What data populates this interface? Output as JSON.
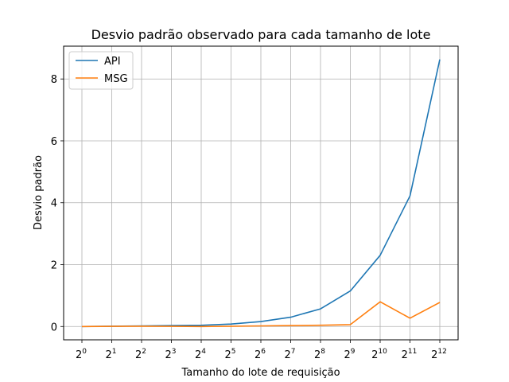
{
  "chart_data": {
    "type": "line",
    "title": "Desvio padrão observado para cada tamanho de lote",
    "xlabel": "Tamanho do lote de requisição",
    "ylabel": "Desvio padrão",
    "x_base": "2",
    "x": [
      1,
      2,
      4,
      8,
      16,
      32,
      64,
      128,
      256,
      512,
      1024,
      2048,
      4096
    ],
    "x_tick_exponents": [
      "0",
      "1",
      "2",
      "3",
      "4",
      "5",
      "6",
      "7",
      "8",
      "9",
      "10",
      "11",
      "12"
    ],
    "y_ticks": [
      0,
      2,
      4,
      6,
      8
    ],
    "ylim": [
      -0.43,
      9.06
    ],
    "x_scale": "log2",
    "grid": true,
    "legend_position": "top-left",
    "series": [
      {
        "name": "API",
        "color": "#1f77b4",
        "values": [
          0.0,
          0.01,
          0.02,
          0.03,
          0.04,
          0.08,
          0.16,
          0.3,
          0.57,
          1.15,
          2.3,
          4.22,
          8.63
        ]
      },
      {
        "name": "MSG",
        "color": "#ff7f0e",
        "values": [
          0.0,
          0.005,
          0.01,
          0.005,
          0.0,
          0.01,
          0.02,
          0.03,
          0.04,
          0.06,
          0.8,
          0.27,
          0.78
        ]
      }
    ]
  }
}
